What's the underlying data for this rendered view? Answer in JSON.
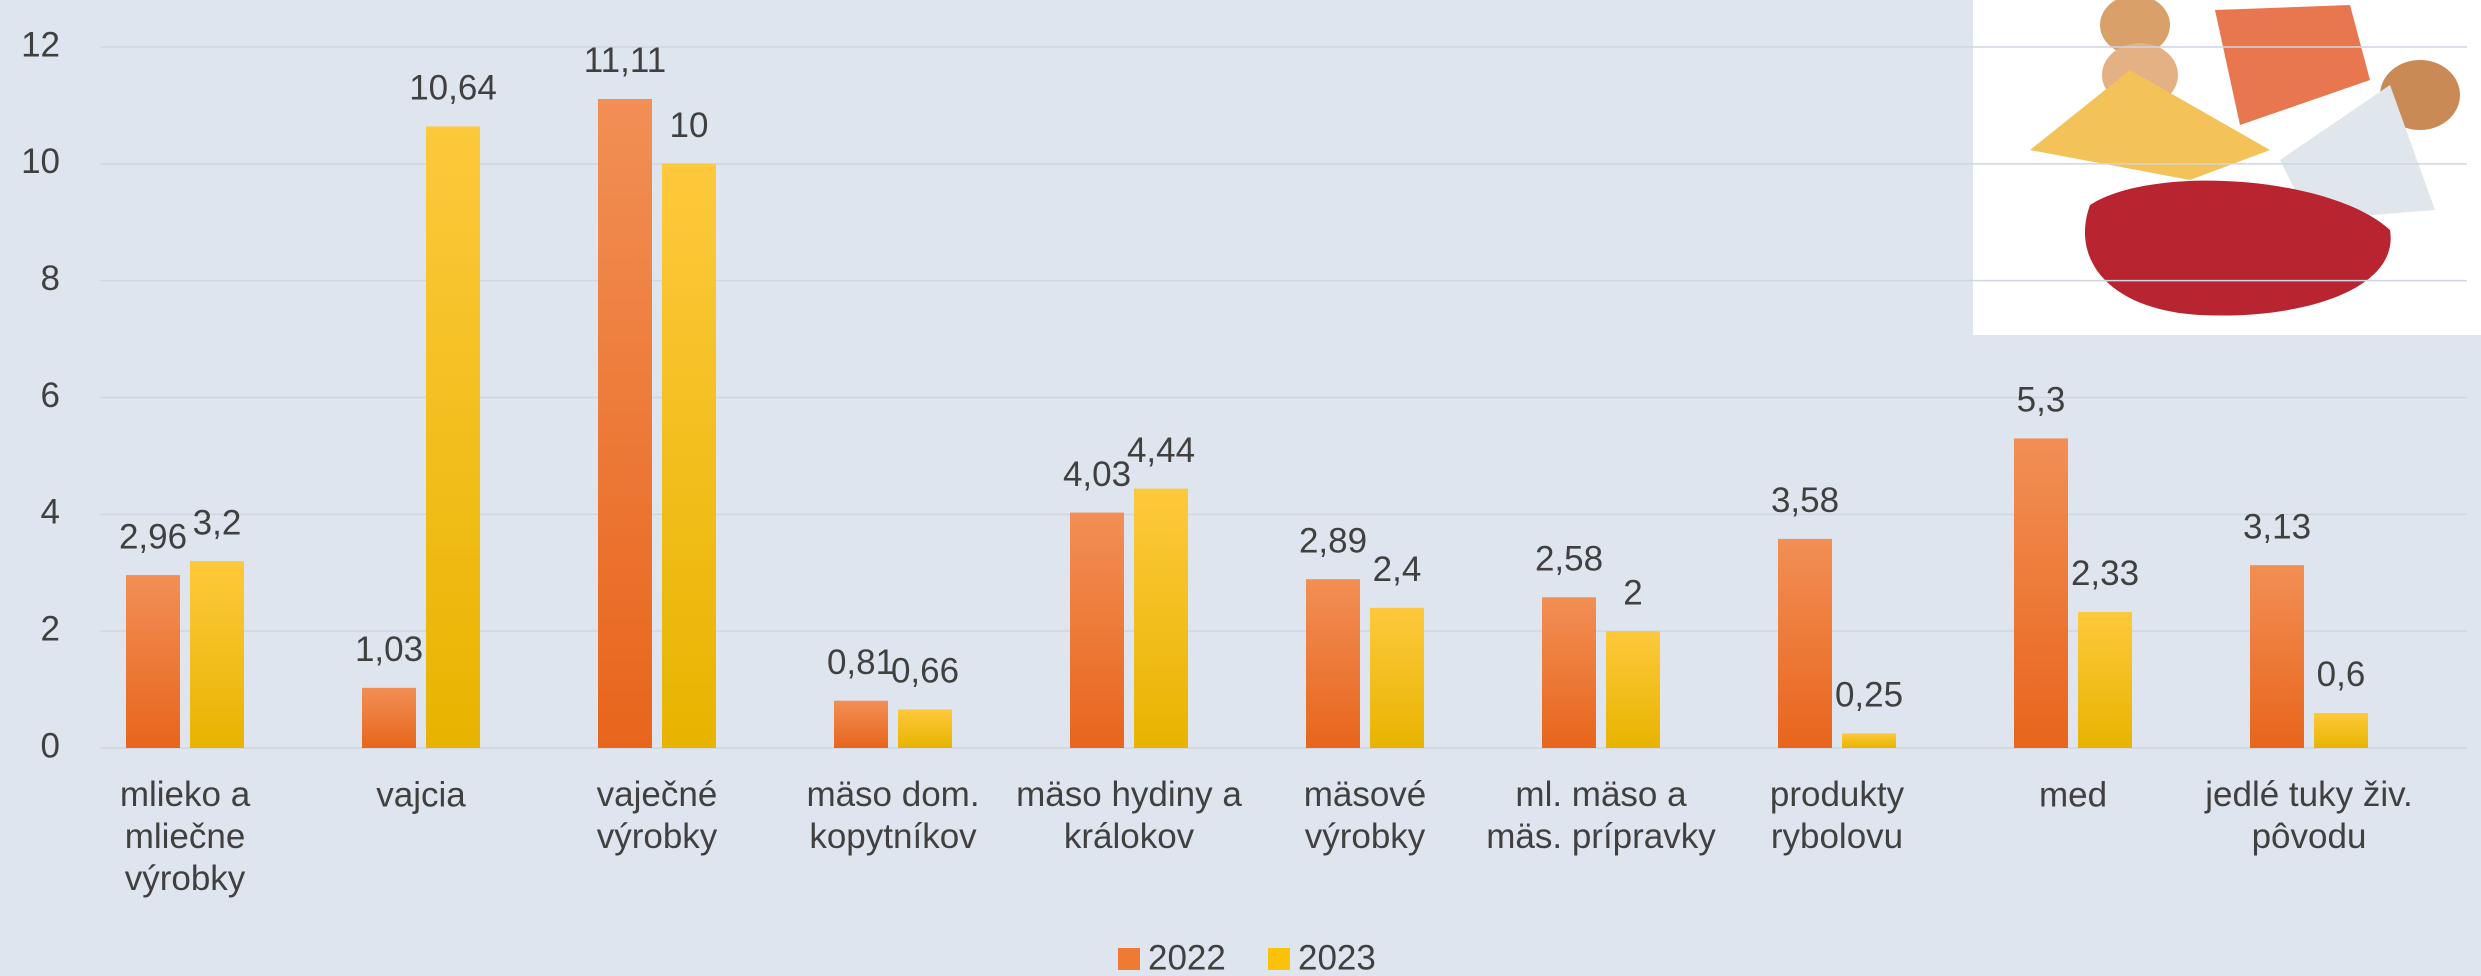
{
  "chart_data": {
    "type": "bar",
    "categories": [
      "mlieko a\nmliečne\nvýrobky",
      "vajcia",
      "vaječné\nvýrobky",
      "mäso dom.\nkopytníkov",
      "mäso hydiny a\nkrálokov",
      "mäsové\nvýrobky",
      "ml. mäso a\nmäs. prípravky",
      "produkty\nrybolovu",
      "med",
      "jedlé tuky živ.\npôvodu"
    ],
    "series": [
      {
        "name": "2022",
        "color": "#ee7a34",
        "values": [
          2.96,
          1.03,
          11.11,
          0.81,
          4.03,
          2.89,
          2.58,
          3.58,
          5.3,
          3.13
        ],
        "value_labels": [
          "2,96",
          "1,03",
          "11,11",
          "0,81",
          "4,03",
          "2,89",
          "2,58",
          "3,58",
          "5,3",
          "3,13"
        ]
      },
      {
        "name": "2023",
        "color": "#fcc20a",
        "values": [
          3.2,
          10.64,
          10,
          0.66,
          4.44,
          2.4,
          2,
          0.25,
          2.33,
          0.6
        ],
        "value_labels": [
          "3,2",
          "10,64",
          "10",
          "0,66",
          "4,44",
          "2,4",
          "2",
          "0,25",
          "2,33",
          "0,6"
        ]
      }
    ],
    "ylim": [
      0,
      12
    ],
    "yticks": [
      0,
      2,
      4,
      6,
      8,
      10,
      12
    ],
    "grid": true,
    "legend": "bottom"
  }
}
